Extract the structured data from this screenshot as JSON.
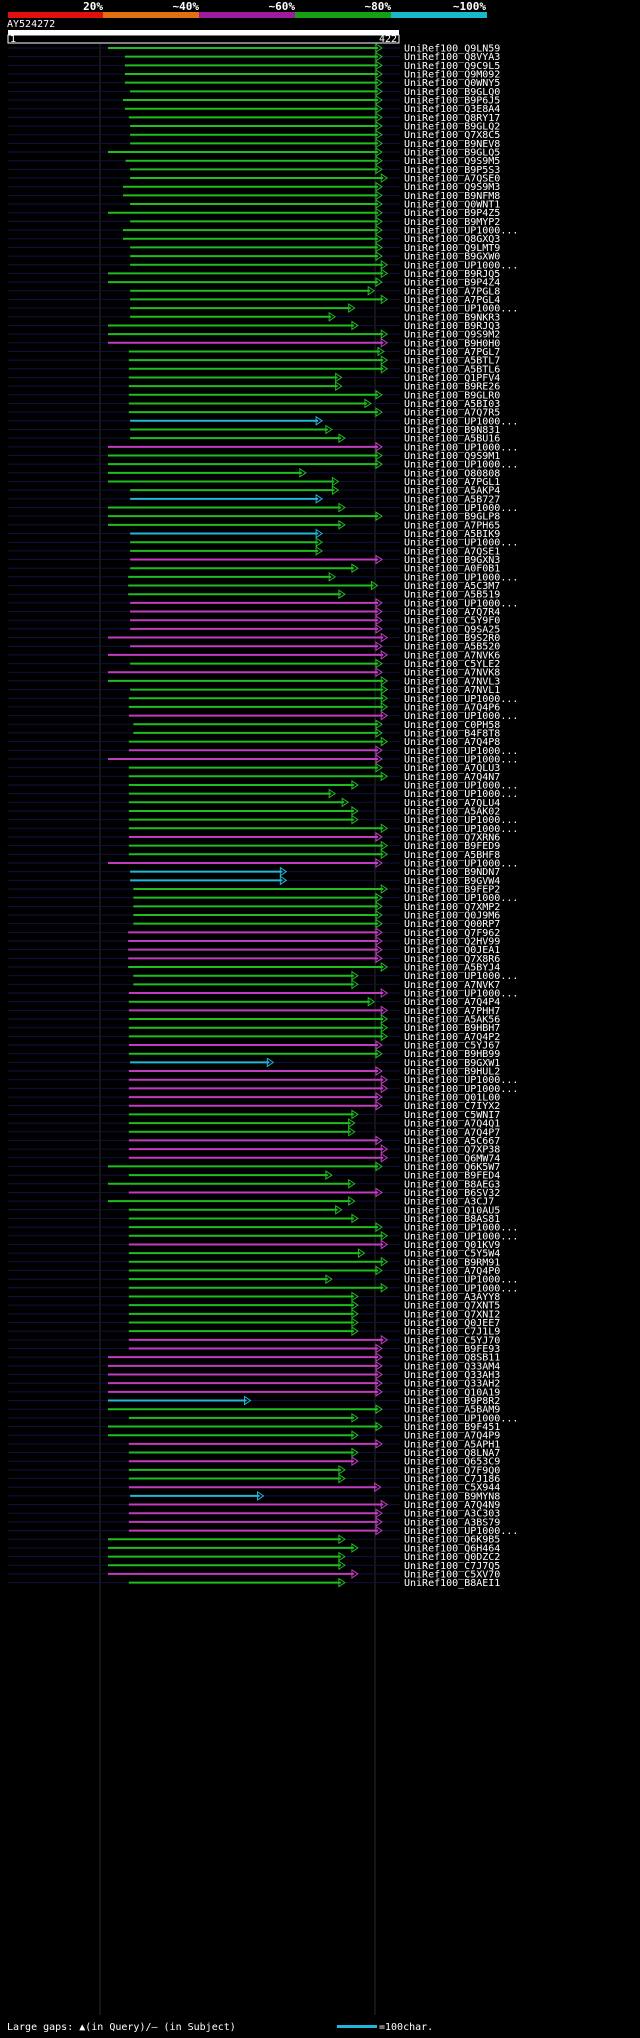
{
  "colors": {
    "background": "#000000",
    "green": "#1fbd1f",
    "magenta": "#c03cc0",
    "cyan": "#20b8d8",
    "identity_bar": [
      "#e01010",
      "#e07010",
      "#9b1d9b",
      "#15a015",
      "#18b8c8"
    ]
  },
  "identity_scale": [
    "20%",
    "~40%",
    "~60%",
    "~80%",
    "~100%"
  ],
  "query": {
    "name": "AY524272",
    "start": "1",
    "end": "422",
    "length": 422
  },
  "footer": {
    "gaps_text": "Large gaps: ▲(in Query)/– (in Subject)",
    "scale_text": "=100char."
  },
  "chart_data": {
    "type": "alignment",
    "x_axis": {
      "range": [
        1,
        422
      ]
    },
    "hits": [
      {
        "label": "UniRef100_Q9LN59",
        "s": 1,
        "e": 422,
        "c": "g"
      },
      {
        "label": "UniRef100_Q8VYA3",
        "s": 27,
        "e": 422,
        "c": "g"
      },
      {
        "label": "UniRef100_Q9C9L5",
        "s": 27,
        "e": 422,
        "c": "g"
      },
      {
        "label": "UniRef100_Q9M092",
        "s": 27,
        "e": 422,
        "c": "g"
      },
      {
        "label": "UniRef100_Q0WNY5",
        "s": 27,
        "e": 422,
        "c": "g"
      },
      {
        "label": "UniRef100_B9GLQ0",
        "s": 35,
        "e": 422,
        "c": "g"
      },
      {
        "label": "UniRef100_B9P6J5",
        "s": 24,
        "e": 422,
        "c": "g"
      },
      {
        "label": "UniRef100_Q3E8A4",
        "s": 27,
        "e": 422,
        "c": "g"
      },
      {
        "label": "UniRef100_Q8RY17",
        "s": 33,
        "e": 422,
        "c": "g"
      },
      {
        "label": "UniRef100_B9GLQ2",
        "s": 35,
        "e": 422,
        "c": "g"
      },
      {
        "label": "UniRef100_Q7X8C5",
        "s": 35,
        "e": 422,
        "c": "g"
      },
      {
        "label": "UniRef100_B9NEV8",
        "s": 35,
        "e": 422,
        "c": "g"
      },
      {
        "label": "UniRef100_B9GLQ5",
        "s": 1,
        "e": 422,
        "c": "g"
      },
      {
        "label": "UniRef100_Q9S9M5",
        "s": 28,
        "e": 422,
        "c": "g"
      },
      {
        "label": "UniRef100_B9P5S3",
        "s": 35,
        "e": 422,
        "c": "g"
      },
      {
        "label": "UniRef100_A7QSE0",
        "s": 35,
        "e": 430,
        "c": "g"
      },
      {
        "label": "UniRef100_Q9S9M3",
        "s": 24,
        "e": 422,
        "c": "g"
      },
      {
        "label": "UniRef100_B9NFM8",
        "s": 24,
        "e": 422,
        "c": "g"
      },
      {
        "label": "UniRef100_Q0WNT1",
        "s": 35,
        "e": 422,
        "c": "g"
      },
      {
        "label": "UniRef100_B9P4Z5",
        "s": 1,
        "e": 422,
        "c": "g"
      },
      {
        "label": "UniRef100_B9MYP2",
        "s": 35,
        "e": 422,
        "c": "g"
      },
      {
        "label": "UniRef100_UP1000...",
        "s": 24,
        "e": 422,
        "c": "g"
      },
      {
        "label": "UniRef100_Q8GXQ3",
        "s": 24,
        "e": 422,
        "c": "g"
      },
      {
        "label": "UniRef100_Q9LMT9",
        "s": 35,
        "e": 422,
        "c": "g"
      },
      {
        "label": "UniRef100_B9GXW0",
        "s": 35,
        "e": 422,
        "c": "g"
      },
      {
        "label": "UniRef100_UP1000...",
        "s": 35,
        "e": 430,
        "c": "g"
      },
      {
        "label": "UniRef100_B9RJQ5",
        "s": 1,
        "e": 430,
        "c": "g"
      },
      {
        "label": "UniRef100_B9P4Z4",
        "s": 1,
        "e": 422,
        "c": "g"
      },
      {
        "label": "UniRef100_A7PGL8",
        "s": 35,
        "e": 410,
        "c": "g"
      },
      {
        "label": "UniRef100_A7PGL4",
        "s": 35,
        "e": 430,
        "c": "g"
      },
      {
        "label": "UniRef100_UP1000...",
        "s": 35,
        "e": 380,
        "c": "g"
      },
      {
        "label": "UniRef100_B9NKR3",
        "s": 35,
        "e": 350,
        "c": "g"
      },
      {
        "label": "UniRef100_B9RJQ3",
        "s": 1,
        "e": 385,
        "c": "g"
      },
      {
        "label": "UniRef100_Q9S9M2",
        "s": 1,
        "e": 430,
        "c": "g"
      },
      {
        "label": "UniRef100_B9H0H0",
        "s": 1,
        "e": 430,
        "c": "m"
      },
      {
        "label": "UniRef100_A7PGL7",
        "s": 33,
        "e": 425,
        "c": "g"
      },
      {
        "label": "UniRef100_A5BTL7",
        "s": 33,
        "e": 430,
        "c": "g"
      },
      {
        "label": "UniRef100_A5BTL6",
        "s": 33,
        "e": 430,
        "c": "g"
      },
      {
        "label": "UniRef100_Q1PFV4",
        "s": 33,
        "e": 360,
        "c": "g"
      },
      {
        "label": "UniRef100_B9RE26",
        "s": 33,
        "e": 360,
        "c": "g"
      },
      {
        "label": "UniRef100_B9GLR0",
        "s": 33,
        "e": 422,
        "c": "g"
      },
      {
        "label": "UniRef100_A5BI03",
        "s": 33,
        "e": 405,
        "c": "g"
      },
      {
        "label": "UniRef100_A7Q7R5",
        "s": 33,
        "e": 422,
        "c": "g"
      },
      {
        "label": "UniRef100_UP1000...",
        "s": 35,
        "e": 330,
        "c": "c"
      },
      {
        "label": "UniRef100_B9N831",
        "s": 35,
        "e": 345,
        "c": "g"
      },
      {
        "label": "UniRef100_A5BU16",
        "s": 35,
        "e": 365,
        "c": "g"
      },
      {
        "label": "UniRef100_UP1000...",
        "s": 1,
        "e": 422,
        "c": "m"
      },
      {
        "label": "UniRef100_Q9S9M1",
        "s": 1,
        "e": 422,
        "c": "g"
      },
      {
        "label": "UniRef100_UP1000...",
        "s": 1,
        "e": 422,
        "c": "g"
      },
      {
        "label": "UniRef100_O80808",
        "s": 1,
        "e": 305,
        "c": "g"
      },
      {
        "label": "UniRef100_A7PGL1",
        "s": 1,
        "e": 355,
        "c": "g"
      },
      {
        "label": "UniRef100_A5AKP4",
        "s": 35,
        "e": 355,
        "c": "g"
      },
      {
        "label": "UniRef100_A5B727",
        "s": 35,
        "e": 330,
        "c": "c"
      },
      {
        "label": "UniRef100_UP1000...",
        "s": 1,
        "e": 365,
        "c": "g"
      },
      {
        "label": "UniRef100_B9GLP8",
        "s": 1,
        "e": 422,
        "c": "g"
      },
      {
        "label": "UniRef100_A7PH65",
        "s": 1,
        "e": 365,
        "c": "g"
      },
      {
        "label": "UniRef100_A5BIK9",
        "s": 35,
        "e": 330,
        "c": "c"
      },
      {
        "label": "UniRef100_UP1000...",
        "s": 35,
        "e": 330,
        "c": "g"
      },
      {
        "label": "UniRef100_A7QSE1",
        "s": 35,
        "e": 330,
        "c": "g"
      },
      {
        "label": "UniRef100_B9GXN3",
        "s": 35,
        "e": 422,
        "c": "m"
      },
      {
        "label": "UniRef100_A0F0B1",
        "s": 35,
        "e": 385,
        "c": "g"
      },
      {
        "label": "UniRef100_UP1000...",
        "s": 32,
        "e": 350,
        "c": "g"
      },
      {
        "label": "UniRef100_A5C3M7",
        "s": 32,
        "e": 415,
        "c": "g"
      },
      {
        "label": "UniRef100_A5B519",
        "s": 32,
        "e": 365,
        "c": "g"
      },
      {
        "label": "UniRef100_UP1000...",
        "s": 35,
        "e": 422,
        "c": "m"
      },
      {
        "label": "UniRef100_A7Q7R4",
        "s": 35,
        "e": 422,
        "c": "m"
      },
      {
        "label": "UniRef100_C5Y9F0",
        "s": 35,
        "e": 422,
        "c": "m"
      },
      {
        "label": "UniRef100_Q9SA25",
        "s": 35,
        "e": 422,
        "c": "m"
      },
      {
        "label": "UniRef100_B9S2R0",
        "s": 1,
        "e": 430,
        "c": "m"
      },
      {
        "label": "UniRef100_A5B520",
        "s": 35,
        "e": 422,
        "c": "m"
      },
      {
        "label": "UniRef100_A7NVK6",
        "s": 1,
        "e": 430,
        "c": "m"
      },
      {
        "label": "UniRef100_C5YLE2",
        "s": 35,
        "e": 422,
        "c": "g"
      },
      {
        "label": "UniRef100_A7NVK8",
        "s": 1,
        "e": 422,
        "c": "m"
      },
      {
        "label": "UniRef100_A7NVL3",
        "s": 1,
        "e": 430,
        "c": "g"
      },
      {
        "label": "UniRef100_A7NVL1",
        "s": 35,
        "e": 430,
        "c": "g"
      },
      {
        "label": "UniRef100_UP1000...",
        "s": 33,
        "e": 430,
        "c": "g"
      },
      {
        "label": "UniRef100_A7Q4P6",
        "s": 33,
        "e": 430,
        "c": "g"
      },
      {
        "label": "UniRef100_UP1000...",
        "s": 33,
        "e": 430,
        "c": "m"
      },
      {
        "label": "UniRef100_C0PH58",
        "s": 40,
        "e": 422,
        "c": "g"
      },
      {
        "label": "UniRef100_B4F8T8",
        "s": 40,
        "e": 422,
        "c": "g"
      },
      {
        "label": "UniRef100_A7Q4P8",
        "s": 33,
        "e": 430,
        "c": "g"
      },
      {
        "label": "UniRef100_UP1000...",
        "s": 33,
        "e": 422,
        "c": "m"
      },
      {
        "label": "UniRef100_UP1000...",
        "s": 1,
        "e": 422,
        "c": "m"
      },
      {
        "label": "UniRef100_A7QLU3",
        "s": 33,
        "e": 422,
        "c": "g"
      },
      {
        "label": "UniRef100_A7Q4N7",
        "s": 33,
        "e": 430,
        "c": "g"
      },
      {
        "label": "UniRef100_UP1000...",
        "s": 33,
        "e": 385,
        "c": "g"
      },
      {
        "label": "UniRef100_UP1000...",
        "s": 33,
        "e": 350,
        "c": "g"
      },
      {
        "label": "UniRef100_A7QLU4",
        "s": 33,
        "e": 370,
        "c": "g"
      },
      {
        "label": "UniRef100_A5AK02",
        "s": 33,
        "e": 385,
        "c": "g"
      },
      {
        "label": "UniRef100_UP1000...",
        "s": 33,
        "e": 385,
        "c": "g"
      },
      {
        "label": "UniRef100_UP1000...",
        "s": 33,
        "e": 430,
        "c": "g"
      },
      {
        "label": "UniRef100_Q7XRN6",
        "s": 33,
        "e": 422,
        "c": "m"
      },
      {
        "label": "UniRef100_B9FED9",
        "s": 33,
        "e": 430,
        "c": "g"
      },
      {
        "label": "UniRef100_A5BHF8",
        "s": 33,
        "e": 430,
        "c": "g"
      },
      {
        "label": "UniRef100_UP1000...",
        "s": 1,
        "e": 422,
        "c": "m"
      },
      {
        "label": "UniRef100_B9NDN7",
        "s": 35,
        "e": 275,
        "c": "c"
      },
      {
        "label": "UniRef100_B9GVW4",
        "s": 35,
        "e": 275,
        "c": "c"
      },
      {
        "label": "UniRef100_B9FEP2",
        "s": 40,
        "e": 430,
        "c": "g"
      },
      {
        "label": "UniRef100_UP1000...",
        "s": 40,
        "e": 422,
        "c": "g"
      },
      {
        "label": "UniRef100_Q7XMP2",
        "s": 40,
        "e": 422,
        "c": "g"
      },
      {
        "label": "UniRef100_Q0J9M6",
        "s": 40,
        "e": 422,
        "c": "g"
      },
      {
        "label": "UniRef100_Q00RP7",
        "s": 40,
        "e": 422,
        "c": "g"
      },
      {
        "label": "UniRef100_Q7F962",
        "s": 32,
        "e": 422,
        "c": "m"
      },
      {
        "label": "UniRef100_Q2HV99",
        "s": 32,
        "e": 422,
        "c": "m"
      },
      {
        "label": "UniRef100_Q0JEA1",
        "s": 32,
        "e": 422,
        "c": "m"
      },
      {
        "label": "UniRef100_Q7X8R6",
        "s": 32,
        "e": 422,
        "c": "m"
      },
      {
        "label": "UniRef100_A5BYJ4",
        "s": 32,
        "e": 430,
        "c": "g"
      },
      {
        "label": "UniRef100_UP1000...",
        "s": 40,
        "e": 385,
        "c": "g"
      },
      {
        "label": "UniRef100_A7NVK7",
        "s": 40,
        "e": 385,
        "c": "g"
      },
      {
        "label": "UniRef100_UP1000...",
        "s": 33,
        "e": 430,
        "c": "m"
      },
      {
        "label": "UniRef100_A7Q4P4",
        "s": 33,
        "e": 410,
        "c": "g"
      },
      {
        "label": "UniRef100_A7PHH7",
        "s": 33,
        "e": 430,
        "c": "m"
      },
      {
        "label": "UniRef100_A5AK56",
        "s": 33,
        "e": 430,
        "c": "g"
      },
      {
        "label": "UniRef100_B9HBH7",
        "s": 33,
        "e": 430,
        "c": "g"
      },
      {
        "label": "UniRef100_A7Q4P2",
        "s": 33,
        "e": 430,
        "c": "g"
      },
      {
        "label": "UniRef100_C5YJ67",
        "s": 33,
        "e": 422,
        "c": "m"
      },
      {
        "label": "UniRef100_B9HB99",
        "s": 33,
        "e": 422,
        "c": "g"
      },
      {
        "label": "UniRef100_B9GXW1",
        "s": 35,
        "e": 255,
        "c": "c"
      },
      {
        "label": "UniRef100_B9HUL2",
        "s": 33,
        "e": 422,
        "c": "m"
      },
      {
        "label": "UniRef100_UP1000...",
        "s": 33,
        "e": 430,
        "c": "m"
      },
      {
        "label": "UniRef100_UP1000...",
        "s": 33,
        "e": 430,
        "c": "m"
      },
      {
        "label": "UniRef100_Q01L00",
        "s": 33,
        "e": 422,
        "c": "m"
      },
      {
        "label": "UniRef100_C7IYX2",
        "s": 33,
        "e": 422,
        "c": "m"
      },
      {
        "label": "UniRef100_C5WNI7",
        "s": 33,
        "e": 385,
        "c": "g"
      },
      {
        "label": "UniRef100_A7Q4Q1",
        "s": 33,
        "e": 380,
        "c": "g"
      },
      {
        "label": "UniRef100_A7Q4P7",
        "s": 33,
        "e": 380,
        "c": "g"
      },
      {
        "label": "UniRef100_A5C667",
        "s": 33,
        "e": 422,
        "c": "m"
      },
      {
        "label": "UniRef100_Q7XP38",
        "s": 33,
        "e": 430,
        "c": "m"
      },
      {
        "label": "UniRef100_Q6MW74",
        "s": 33,
        "e": 430,
        "c": "m"
      },
      {
        "label": "UniRef100_Q6K5W7",
        "s": 1,
        "e": 422,
        "c": "g"
      },
      {
        "label": "UniRef100_B9FED4",
        "s": 33,
        "e": 345,
        "c": "g"
      },
      {
        "label": "UniRef100_B8AEG3",
        "s": 1,
        "e": 380,
        "c": "g"
      },
      {
        "label": "UniRef100_B6SV32",
        "s": 33,
        "e": 422,
        "c": "m"
      },
      {
        "label": "UniRef100_A3CJ7",
        "s": 1,
        "e": 380,
        "c": "g"
      },
      {
        "label": "UniRef100_Q10AU5",
        "s": 33,
        "e": 360,
        "c": "g"
      },
      {
        "label": "UniRef100_B8AS81",
        "s": 33,
        "e": 385,
        "c": "g"
      },
      {
        "label": "UniRef100_UP1000...",
        "s": 33,
        "e": 422,
        "c": "g"
      },
      {
        "label": "UniRef100_UP1000...",
        "s": 33,
        "e": 430,
        "c": "g"
      },
      {
        "label": "UniRef100_Q01KV9",
        "s": 33,
        "e": 430,
        "c": "m"
      },
      {
        "label": "UniRef100_C5Y5W4",
        "s": 33,
        "e": 395,
        "c": "g"
      },
      {
        "label": "UniRef100_B9RM91",
        "s": 33,
        "e": 430,
        "c": "g"
      },
      {
        "label": "UniRef100_A7Q4P0",
        "s": 33,
        "e": 422,
        "c": "g"
      },
      {
        "label": "UniRef100_UP1000...",
        "s": 33,
        "e": 345,
        "c": "g"
      },
      {
        "label": "UniRef100_UP1000...",
        "s": 33,
        "e": 430,
        "c": "g"
      },
      {
        "label": "UniRef100_A3AYY8",
        "s": 33,
        "e": 385,
        "c": "g"
      },
      {
        "label": "UniRef100_Q7XNT5",
        "s": 33,
        "e": 385,
        "c": "g"
      },
      {
        "label": "UniRef100_Q7XNI2",
        "s": 33,
        "e": 385,
        "c": "g"
      },
      {
        "label": "UniRef100_Q0JEE7",
        "s": 33,
        "e": 385,
        "c": "g"
      },
      {
        "label": "UniRef100_C7J1L9",
        "s": 33,
        "e": 385,
        "c": "g"
      },
      {
        "label": "UniRef100_C5YJ70",
        "s": 33,
        "e": 430,
        "c": "m"
      },
      {
        "label": "UniRef100_B9FE93",
        "s": 33,
        "e": 422,
        "c": "m"
      },
      {
        "label": "UniRef100_Q8SB11",
        "s": 1,
        "e": 422,
        "c": "m"
      },
      {
        "label": "UniRef100_Q33AM4",
        "s": 1,
        "e": 422,
        "c": "m"
      },
      {
        "label": "UniRef100_Q33AH3",
        "s": 1,
        "e": 422,
        "c": "m"
      },
      {
        "label": "UniRef100_Q33AH2",
        "s": 1,
        "e": 422,
        "c": "m"
      },
      {
        "label": "UniRef100_Q10A19",
        "s": 1,
        "e": 422,
        "c": "m"
      },
      {
        "label": "UniRef100_B9P8R2",
        "s": 1,
        "e": 220,
        "c": "c"
      },
      {
        "label": "UniRef100_A5BAM9",
        "s": 1,
        "e": 422,
        "c": "g"
      },
      {
        "label": "UniRef100_UP1000...",
        "s": 33,
        "e": 385,
        "c": "g"
      },
      {
        "label": "UniRef100_B9F451",
        "s": 1,
        "e": 422,
        "c": "g"
      },
      {
        "label": "UniRef100_A7Q4P9",
        "s": 1,
        "e": 385,
        "c": "g"
      },
      {
        "label": "UniRef100_A5APH1",
        "s": 33,
        "e": 422,
        "c": "m"
      },
      {
        "label": "UniRef100_Q8LNA7",
        "s": 33,
        "e": 385,
        "c": "g"
      },
      {
        "label": "UniRef100_Q653C9",
        "s": 33,
        "e": 385,
        "c": "m"
      },
      {
        "label": "UniRef100_Q7F9Q0",
        "s": 33,
        "e": 365,
        "c": "g"
      },
      {
        "label": "UniRef100_C7J186",
        "s": 33,
        "e": 365,
        "c": "g"
      },
      {
        "label": "UniRef100_C5X944",
        "s": 33,
        "e": 420,
        "c": "m"
      },
      {
        "label": "UniRef100_B9MYN8",
        "s": 35,
        "e": 240,
        "c": "c"
      },
      {
        "label": "UniRef100_A7Q4N9",
        "s": 33,
        "e": 430,
        "c": "m"
      },
      {
        "label": "UniRef100_A3C303",
        "s": 33,
        "e": 422,
        "c": "m"
      },
      {
        "label": "UniRef100_A3BS79",
        "s": 33,
        "e": 422,
        "c": "m"
      },
      {
        "label": "UniRef100_UP1000...",
        "s": 33,
        "e": 422,
        "c": "m"
      },
      {
        "label": "UniRef100_Q6K9B5",
        "s": 1,
        "e": 365,
        "c": "g"
      },
      {
        "label": "UniRef100_Q6H464",
        "s": 1,
        "e": 385,
        "c": "g"
      },
      {
        "label": "UniRef100_Q0DZC2",
        "s": 1,
        "e": 365,
        "c": "g"
      },
      {
        "label": "UniRef100_C7J7Q5",
        "s": 1,
        "e": 365,
        "c": "g"
      },
      {
        "label": "UniRef100_C5XV70",
        "s": 1,
        "e": 385,
        "c": "m"
      },
      {
        "label": "UniRef100_B8AEI1",
        "s": 33,
        "e": 365,
        "c": "g"
      }
    ]
  }
}
